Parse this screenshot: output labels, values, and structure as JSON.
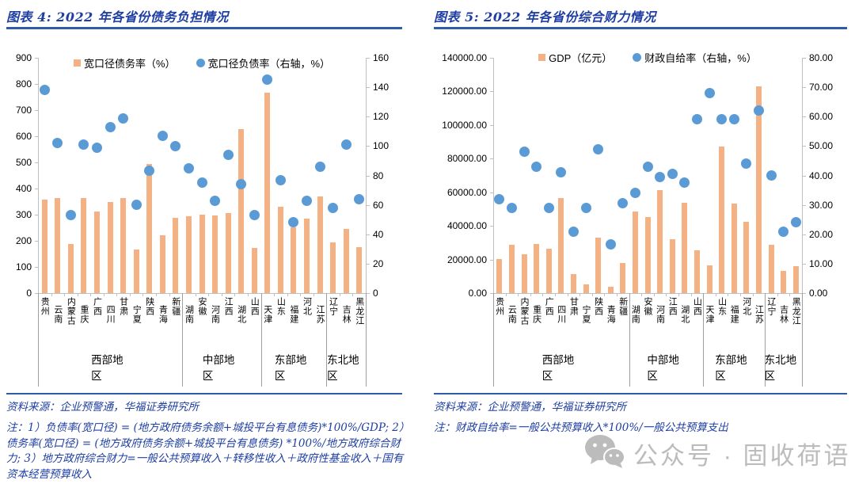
{
  "watermark": {
    "text": "公众号 · 固收荷语",
    "color": "#bcbcbc",
    "icon": "wechat-icon"
  },
  "panels": [
    {
      "title": "图表 4: 2022 年各省份债务负担情况",
      "source": "资料来源：企业预警通，华福证券研究所",
      "note": "注：1）负债率(宽口径) = (地方政府债务余额+城投平台有息债务)*100%/GDP; 2）债务率(宽口径) = (地方政府债务余额+城投平台有息债务) *100%/地方政府综合财力; 3）地方政府综合财力=一般公共预算收入＋转移性收入＋政府性基金收入＋国有资本经营预算收入"
    },
    {
      "title": "图表 5: 2022 年各省份综合财力情况",
      "source": "资料来源：企业预警通，华福证券研究所",
      "note": "注：财政自给率=一般公共预算收入*100%/一般公共预算支出"
    }
  ],
  "chart_data": [
    {
      "type": "bar+scatter",
      "title": "图表 4: 2022 年各省份债务负担情况",
      "categories": [
        "贵州",
        "云南",
        "内蒙古",
        "重庆",
        "广西",
        "四川",
        "甘肃",
        "宁夏",
        "陕西",
        "青海",
        "新疆",
        "湖南",
        "安徽",
        "河南",
        "江西",
        "湖北",
        "山西",
        "天津",
        "山东",
        "福建",
        "河北",
        "江苏",
        "辽宁",
        "吉林",
        "黑龙江"
      ],
      "groups": [
        {
          "label": "西部地区",
          "span": 11
        },
        {
          "label": "中部地区",
          "span": 6
        },
        {
          "label": "东部地区",
          "span": 5
        },
        {
          "label": "东北地区",
          "span": 3
        }
      ],
      "series": [
        {
          "name": "宽口径债务率（%）",
          "type": "bar",
          "axis": "left",
          "color": "#F4B183",
          "values": [
            358,
            364,
            187,
            364,
            313,
            348,
            364,
            168,
            493,
            221,
            288,
            293,
            300,
            298,
            306,
            627,
            172,
            766,
            330,
            252,
            285,
            370,
            194,
            245,
            176
          ]
        },
        {
          "name": "宽口径负债率（右轴，%）",
          "type": "scatter",
          "axis": "right",
          "color": "#5B9BD5",
          "values": [
            138,
            102,
            53,
            101,
            99,
            113,
            119,
            60,
            83,
            107,
            100,
            85,
            75,
            63,
            94,
            74,
            53,
            145,
            77,
            48,
            63,
            86,
            58,
            101,
            64
          ]
        }
      ],
      "left_axis": {
        "min": 0,
        "max": 900,
        "step": 100,
        "format": "int"
      },
      "right_axis": {
        "min": 0,
        "max": 160,
        "step": 20,
        "format": "int"
      },
      "grid": false,
      "legend_position": "top-center"
    },
    {
      "type": "bar+scatter",
      "title": "图表 5: 2022 年各省份综合财力情况",
      "categories": [
        "贵州",
        "云南",
        "内蒙古",
        "重庆",
        "广西",
        "四川",
        "甘肃",
        "宁夏",
        "陕西",
        "青海",
        "新疆",
        "湖南",
        "安徽",
        "河南",
        "江西",
        "湖北",
        "山西",
        "天津",
        "山东",
        "福建",
        "河北",
        "江苏",
        "辽宁",
        "吉林",
        "黑龙江"
      ],
      "groups": [
        {
          "label": "西部地区",
          "span": 11
        },
        {
          "label": "中部地区",
          "span": 6
        },
        {
          "label": "东部地区",
          "span": 5
        },
        {
          "label": "东北地区",
          "span": 3
        }
      ],
      "series": [
        {
          "name": "GDP（亿元）",
          "type": "bar",
          "axis": "left",
          "color": "#F4B183",
          "values": [
            20160,
            28950,
            23200,
            29100,
            26300,
            56750,
            11200,
            5070,
            32770,
            3610,
            17740,
            48670,
            45050,
            61345,
            32075,
            53735,
            25640,
            16310,
            87435,
            53110,
            42370,
            122875,
            28975,
            13070,
            15900
          ]
        },
        {
          "name": "财政自给率（右轴，%）",
          "type": "scatter",
          "axis": "right",
          "color": "#5B9BD5",
          "values": [
            32,
            29,
            48,
            43,
            29,
            41,
            21,
            29,
            49,
            16.5,
            30.5,
            34,
            43,
            39.5,
            40.5,
            37.5,
            59,
            68,
            59,
            59,
            44,
            62,
            40,
            21,
            24
          ]
        }
      ],
      "left_axis": {
        "min": 0,
        "max": 140000,
        "step": 20000,
        "format": "2dp"
      },
      "right_axis": {
        "min": 0,
        "max": 80,
        "step": 10,
        "format": "2dp"
      },
      "grid": false,
      "legend_position": "top-center"
    }
  ]
}
